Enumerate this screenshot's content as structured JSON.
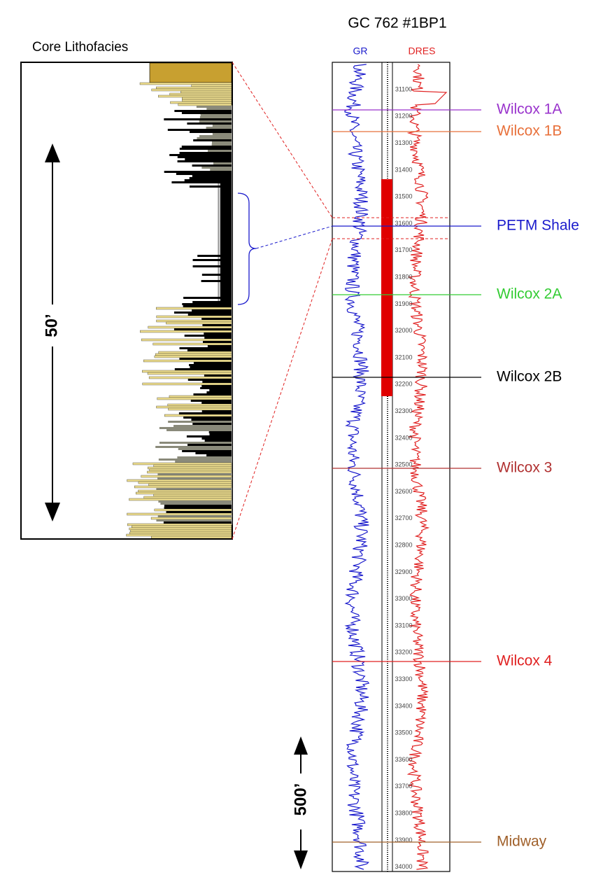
{
  "title": "GC 762 #1BP1",
  "core_title": "Core Lithofacies",
  "core_scale": "50’",
  "log_scale": "500’",
  "curves": [
    {
      "name": "GR",
      "color": "#1a1acc"
    },
    {
      "name": "DRES",
      "color": "#e02020"
    }
  ],
  "depth_labels": [
    31100,
    31200,
    31300,
    31400,
    31500,
    31600,
    31700,
    31800,
    31900,
    32000,
    32100,
    32200,
    32300,
    32400,
    32500,
    32600,
    32700,
    32800,
    32900,
    33000,
    33100,
    33200,
    33300,
    33400,
    33500,
    33600,
    33700,
    33800,
    33900,
    34000
  ],
  "tops": [
    {
      "name": "Wilcox 1A",
      "color": "#9933cc"
    },
    {
      "name": "Wilcox 1B",
      "color": "#e8703a"
    },
    {
      "name": "PETM Shale",
      "color": "#1a1acc"
    },
    {
      "name": "Wilcox 2A",
      "color": "#33cc33"
    },
    {
      "name": "Wilcox 2B",
      "color": "#000000"
    },
    {
      "name": "Wilcox 3",
      "color": "#b03030"
    },
    {
      "name": "Wilcox 4",
      "color": "#e02020"
    },
    {
      "name": "Midway",
      "color": "#a0602a"
    }
  ]
}
